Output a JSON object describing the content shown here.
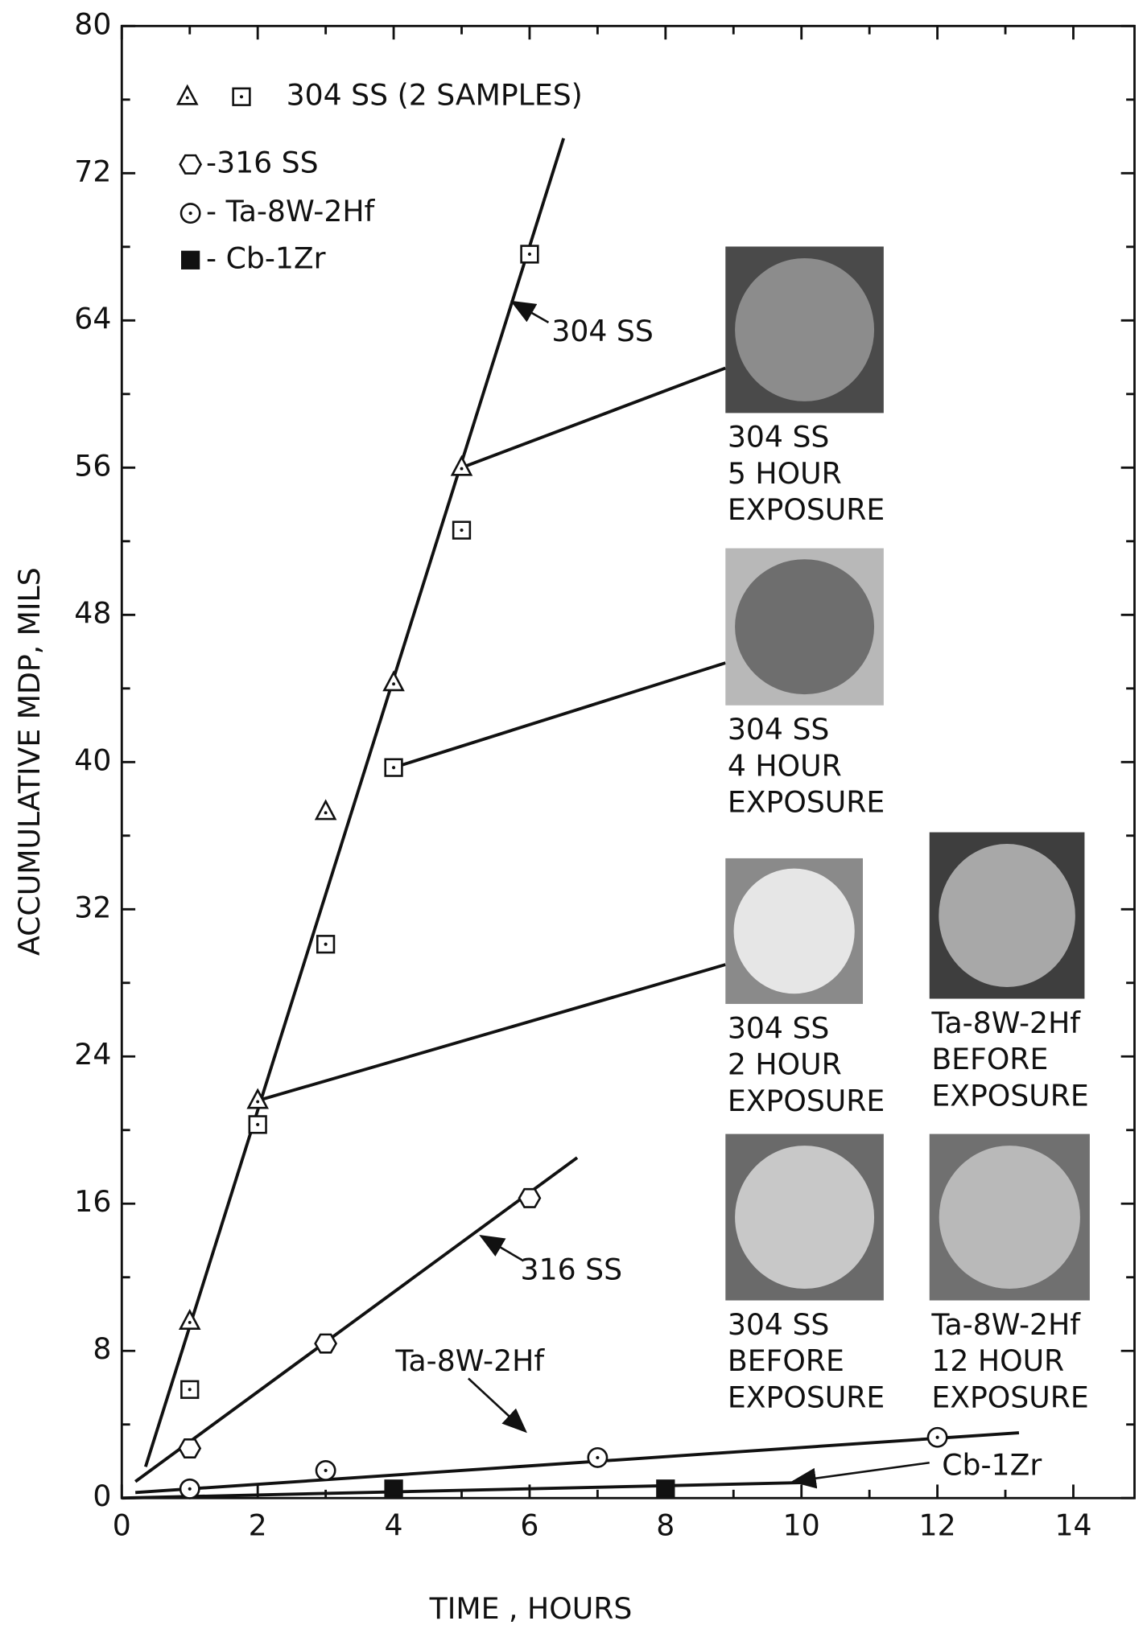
{
  "chart_data": {
    "type": "scatter",
    "xlabel": "TIME , HOURS",
    "ylabel": "ACCUMULATIVE MDP, MILS",
    "xlim": [
      0,
      14.9
    ],
    "ylim": [
      0,
      80
    ],
    "xticks": [
      0,
      2,
      4,
      6,
      8,
      10,
      12,
      14
    ],
    "yticks": [
      0,
      8,
      16,
      24,
      32,
      40,
      48,
      56,
      64,
      72,
      80
    ],
    "series": [
      {
        "marker": "triangle",
        "x": [
          1,
          2,
          3,
          4,
          5
        ],
        "values": [
          9.6,
          21.6,
          37.3,
          44.3,
          56
        ]
      },
      {
        "marker": "square",
        "x": [
          1,
          2,
          3,
          4,
          5,
          6
        ],
        "values": [
          5.9,
          20.3,
          30.1,
          39.7,
          52.6,
          67.6
        ]
      },
      {
        "marker": "hexagon",
        "x": [
          1,
          3,
          6
        ],
        "values": [
          2.7,
          8.4,
          16.3
        ]
      },
      {
        "marker": "circle",
        "x": [
          1,
          3,
          7,
          12
        ],
        "values": [
          0.5,
          1.5,
          2.2,
          3.3
        ]
      },
      {
        "marker": "filled-square",
        "x": [
          4,
          8
        ],
        "values": [
          0.5,
          0.5
        ]
      }
    ],
    "legend": [
      {
        "label": "304 SS (2 SAMPLES)",
        "series": [
          0,
          1
        ]
      },
      {
        "label": "-316 SS",
        "series": [
          2
        ]
      },
      {
        "label": "- Ta-8W-2Hf",
        "series": [
          3
        ]
      },
      {
        "label": "- Cb-1Zr",
        "series": [
          4
        ]
      }
    ],
    "fits": [
      {
        "x": [
          0.35,
          6.5
        ],
        "values": [
          1.7,
          73.9
        ]
      },
      {
        "x": [
          0.2,
          6.7
        ],
        "values": [
          0.9,
          18.5
        ]
      },
      {
        "x": [
          0.2,
          13.2
        ],
        "values": [
          0.3,
          3.55
        ]
      },
      {
        "x": [
          0,
          10.1
        ],
        "values": [
          0,
          0.85
        ]
      }
    ],
    "annotations": [
      "304 SS",
      "316 SS",
      "Ta-8W-2Hf",
      "Cb-1Zr"
    ],
    "photos": [
      {
        "caption": [
          "304 SS",
          "5 HOUR",
          "EXPOSURE"
        ]
      },
      {
        "caption": [
          "304 SS",
          "4 HOUR",
          "EXPOSURE"
        ]
      },
      {
        "caption": [
          "304 SS",
          "2 HOUR",
          "EXPOSURE"
        ]
      },
      {
        "caption": [
          "Ta-8W-2Hf",
          "BEFORE",
          "EXPOSURE"
        ]
      },
      {
        "caption": [
          "304 SS",
          "BEFORE",
          "EXPOSURE"
        ]
      },
      {
        "caption": [
          "Ta-8W-2Hf",
          "12 HOUR",
          "EXPOSURE"
        ]
      }
    ]
  }
}
